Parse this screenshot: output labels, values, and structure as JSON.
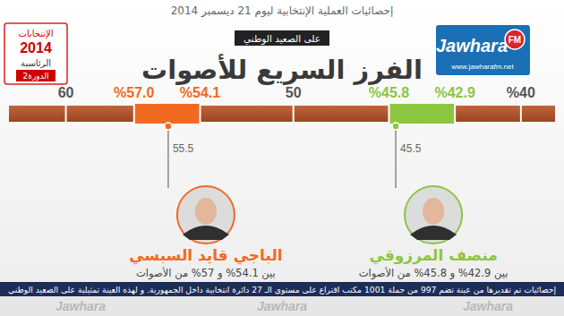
{
  "chart_data": {
    "type": "range",
    "header": "إحصائيات العملية الإنتخابية ليوم 21 ديسمبر 2014",
    "subtitle": "على الصعيد الوطني",
    "title": "الفرز السريع للأصوات",
    "orientation": "horizontal",
    "data_labels": true,
    "xlim": [
      62.5,
      38.5
    ],
    "xticks": [
      60,
      {
        "value": 57,
        "label": "%57.0"
      },
      {
        "value": 54.1,
        "label": "%54.1"
      },
      50,
      {
        "value": 45.8,
        "label": "%45.8"
      },
      {
        "value": 42.9,
        "label": "%42.9"
      },
      {
        "value": 40,
        "label": "%40"
      }
    ],
    "series": [
      {
        "name": "الباجي قايد السبسي",
        "color": "#f26a21",
        "low": 54.1,
        "high": 57,
        "estimate": 55.5,
        "caption": "بين 54.1% و 57% من الأصوات"
      },
      {
        "name": "منصف المرزوقي",
        "color": "#8cc63f",
        "low": 42.9,
        "high": 45.8,
        "estimate": 45.5,
        "caption": "بين 42.9% و 45.8% من الأصوات"
      }
    ],
    "footnote": "إحصائيات تم تقديرها من عينة تضم 997 من جملة 1001 مكتب اقتراع على مستوى الـ 27 دائرة انتخابية داخل الجمهورية. و لهذه العينة تمثيلية على الصعيد الوطني"
  },
  "logos": {
    "election": [
      "الإنتخابات",
      "2014",
      "الرئاسية",
      "الدورة2"
    ],
    "station": {
      "name": "Jawhara",
      "band": "FM",
      "url": "www.jawharafm.net"
    },
    "watermark": "Jawhara"
  }
}
